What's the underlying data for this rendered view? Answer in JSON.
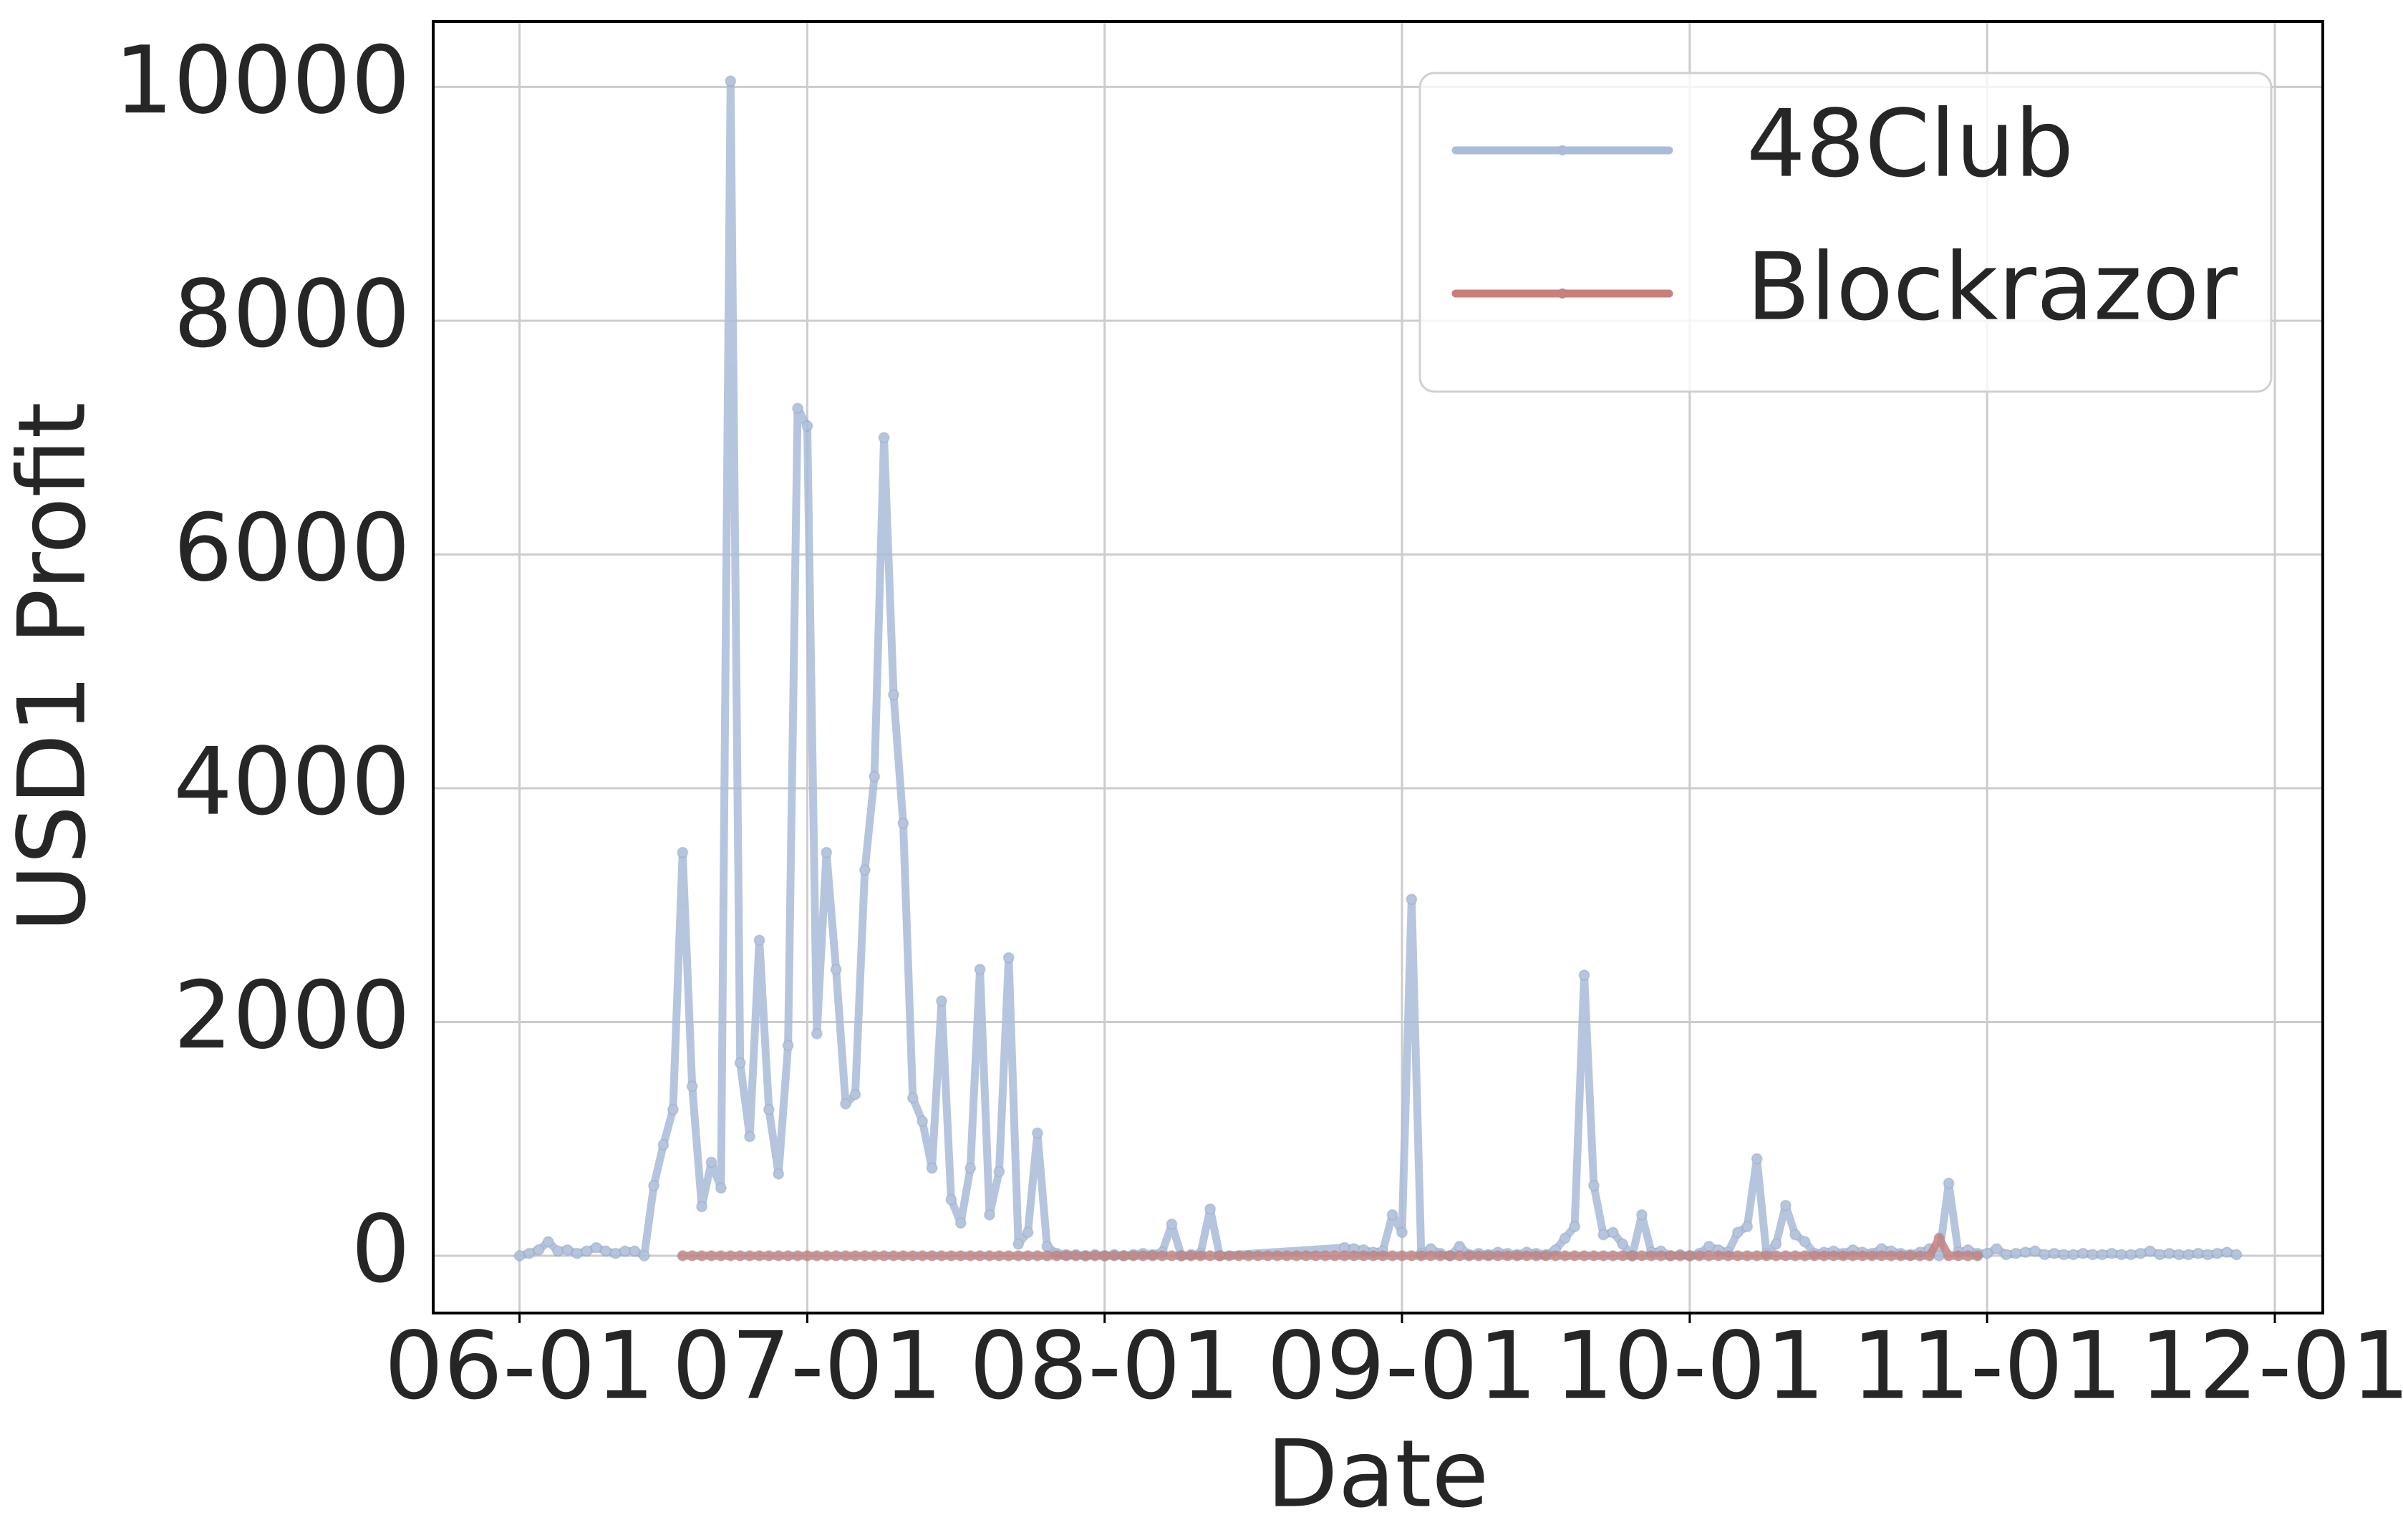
{
  "chart_data": {
    "type": "line",
    "xlabel": "Date",
    "ylabel": "USD1 Profit",
    "xlim": [
      "05-23",
      "12-06"
    ],
    "xticks": [
      "06-01",
      "07-01",
      "08-01",
      "09-01",
      "10-01",
      "11-01",
      "12-01"
    ],
    "ylim": [
      -490,
      10560
    ],
    "yticks": [
      0,
      2000,
      4000,
      6000,
      8000,
      10000
    ],
    "grid": true,
    "legend": "upper right",
    "series": [
      {
        "name": "48Club",
        "color": "#aabcd9",
        "x": [
          "06-01",
          "06-02",
          "06-03",
          "06-04",
          "06-05",
          "06-06",
          "06-07",
          "06-08",
          "06-09",
          "06-10",
          "06-11",
          "06-12",
          "06-13",
          "06-14",
          "06-15",
          "06-16",
          "06-17",
          "06-18",
          "06-19",
          "06-20",
          "06-21",
          "06-22",
          "06-23",
          "06-24",
          "06-25",
          "06-26",
          "06-27",
          "06-28",
          "06-29",
          "06-30",
          "07-01",
          "07-02",
          "07-03",
          "07-04",
          "07-05",
          "07-06",
          "07-07",
          "07-08",
          "07-09",
          "07-10",
          "07-11",
          "07-12",
          "07-13",
          "07-14",
          "07-15",
          "07-16",
          "07-17",
          "07-18",
          "07-19",
          "07-20",
          "07-21",
          "07-22",
          "07-23",
          "07-24",
          "07-25",
          "07-26",
          "07-27",
          "07-28",
          "07-29",
          "07-30",
          "07-31",
          "08-01",
          "08-02",
          "08-03",
          "08-04",
          "08-05",
          "08-06",
          "08-07",
          "08-08",
          "08-09",
          "08-10",
          "08-11",
          "08-12",
          "08-13",
          "08-26",
          "08-27",
          "08-28",
          "08-29",
          "08-30",
          "08-31",
          "09-01",
          "09-02",
          "09-03",
          "09-04",
          "09-05",
          "09-06",
          "09-07",
          "09-08",
          "09-09",
          "09-10",
          "09-11",
          "09-12",
          "09-13",
          "09-14",
          "09-15",
          "09-16",
          "09-17",
          "09-18",
          "09-19",
          "09-20",
          "09-21",
          "09-22",
          "09-23",
          "09-24",
          "09-25",
          "09-26",
          "09-27",
          "09-28",
          "09-29",
          "09-30",
          "10-01",
          "10-02",
          "10-03",
          "10-04",
          "10-05",
          "10-06",
          "10-07",
          "10-08",
          "10-09",
          "10-10",
          "10-11",
          "10-12",
          "10-13",
          "10-14",
          "10-15",
          "10-16",
          "10-17",
          "10-18",
          "10-19",
          "10-20",
          "10-21",
          "10-22",
          "10-23",
          "10-24",
          "10-25",
          "10-26",
          "10-27",
          "10-28",
          "10-29",
          "10-30",
          "10-31",
          "11-01",
          "11-02",
          "11-03",
          "11-04",
          "11-05",
          "11-06",
          "11-07",
          "11-08",
          "11-09",
          "11-10",
          "11-11",
          "11-12",
          "11-13",
          "11-14",
          "11-15",
          "11-16",
          "11-17",
          "11-18",
          "11-19",
          "11-20",
          "11-21",
          "11-22",
          "11-23",
          "11-24",
          "11-25",
          "11-26",
          "11-27"
        ],
        "values": [
          0,
          20,
          50,
          120,
          40,
          50,
          20,
          40,
          70,
          40,
          20,
          40,
          40,
          0,
          600,
          950,
          1250,
          3450,
          1450,
          420,
          800,
          580,
          10050,
          1650,
          1020,
          2700,
          1250,
          700,
          1800,
          7250,
          7100,
          1900,
          3450,
          2450,
          1300,
          1380,
          3300,
          4100,
          7000,
          4800,
          3700,
          1350,
          1150,
          750,
          2180,
          480,
          280,
          750,
          2450,
          350,
          720,
          2550,
          100,
          200,
          1050,
          80,
          20,
          10,
          10,
          0,
          10,
          0,
          10,
          0,
          10,
          20,
          10,
          30,
          270,
          0,
          10,
          20,
          400,
          0,
          70,
          60,
          50,
          30,
          40,
          350,
          200,
          3050,
          20,
          60,
          20,
          0,
          80,
          10,
          20,
          10,
          30,
          20,
          10,
          30,
          20,
          10,
          50,
          150,
          250,
          2400,
          600,
          180,
          200,
          100,
          0,
          350,
          30,
          40,
          0,
          10,
          0,
          20,
          80,
          50,
          30,
          200,
          250,
          830,
          20,
          100,
          430,
          180,
          120,
          20,
          30,
          40,
          20,
          50,
          30,
          20,
          60,
          40,
          20,
          10,
          30,
          60,
          0,
          620,
          30,
          50,
          20,
          20,
          60,
          10,
          20,
          30,
          40,
          10,
          20,
          10,
          10,
          20,
          10,
          10,
          20,
          10,
          10,
          20,
          40,
          10,
          20,
          10,
          10,
          20,
          10,
          20,
          30,
          10
        ]
      },
      {
        "name": "Blockrazor",
        "color": "#c8807a",
        "x": [
          "06-18",
          "06-19",
          "06-20",
          "06-21",
          "06-22",
          "06-23",
          "06-24",
          "06-25",
          "06-26",
          "06-27",
          "06-28",
          "06-29",
          "06-30",
          "07-01",
          "07-02",
          "07-03",
          "07-04",
          "07-05",
          "07-06",
          "07-07",
          "07-08",
          "07-09",
          "07-10",
          "07-11",
          "07-12",
          "07-13",
          "07-14",
          "07-15",
          "07-16",
          "07-17",
          "07-18",
          "07-19",
          "07-20",
          "07-21",
          "07-22",
          "07-23",
          "07-24",
          "07-25",
          "07-26",
          "07-27",
          "07-28",
          "07-29",
          "07-30",
          "07-31",
          "08-01",
          "08-02",
          "08-03",
          "08-04",
          "08-05",
          "08-06",
          "08-07",
          "08-08",
          "08-09",
          "08-10",
          "08-11",
          "08-12",
          "08-13",
          "08-14",
          "08-15",
          "08-16",
          "08-17",
          "08-18",
          "08-19",
          "08-20",
          "08-21",
          "08-22",
          "08-23",
          "08-24",
          "08-25",
          "08-26",
          "08-27",
          "08-28",
          "08-29",
          "08-30",
          "08-31",
          "09-01",
          "09-02",
          "09-03",
          "09-04",
          "09-05",
          "09-06",
          "09-07",
          "09-08",
          "09-09",
          "09-10",
          "09-11",
          "09-12",
          "09-13",
          "09-14",
          "09-15",
          "09-16",
          "09-17",
          "09-18",
          "09-19",
          "09-20",
          "09-21",
          "09-22",
          "09-23",
          "09-24",
          "09-25",
          "09-26",
          "09-27",
          "09-28",
          "09-29",
          "09-30",
          "10-01",
          "10-02",
          "10-03",
          "10-04",
          "10-05",
          "10-06",
          "10-07",
          "10-08",
          "10-09",
          "10-10",
          "10-11",
          "10-12",
          "10-13",
          "10-14",
          "10-15",
          "10-16",
          "10-17",
          "10-18",
          "10-19",
          "10-20",
          "10-21",
          "10-22",
          "10-23",
          "10-24",
          "10-25",
          "10-26",
          "10-27",
          "10-28",
          "10-29",
          "10-30",
          "10-31"
        ],
        "values": [
          0,
          0,
          0,
          0,
          0,
          0,
          0,
          0,
          0,
          0,
          0,
          0,
          0,
          0,
          0,
          0,
          0,
          0,
          0,
          0,
          0,
          0,
          0,
          0,
          0,
          0,
          0,
          0,
          0,
          0,
          0,
          0,
          0,
          0,
          0,
          0,
          0,
          0,
          0,
          0,
          0,
          0,
          0,
          0,
          0,
          0,
          0,
          0,
          0,
          0,
          0,
          0,
          0,
          0,
          0,
          0,
          0,
          0,
          0,
          0,
          0,
          0,
          0,
          0,
          0,
          0,
          0,
          0,
          0,
          0,
          0,
          0,
          0,
          0,
          0,
          0,
          0,
          0,
          0,
          0,
          0,
          0,
          0,
          0,
          0,
          0,
          0,
          0,
          0,
          0,
          0,
          0,
          0,
          0,
          0,
          0,
          0,
          0,
          0,
          0,
          0,
          0,
          0,
          0,
          0,
          0,
          0,
          0,
          0,
          0,
          0,
          0,
          0,
          0,
          0,
          0,
          0,
          0,
          0,
          0,
          0,
          0,
          0,
          0,
          0,
          0,
          0,
          0,
          0,
          0,
          0,
          150,
          0,
          0,
          0,
          0
        ]
      }
    ]
  }
}
